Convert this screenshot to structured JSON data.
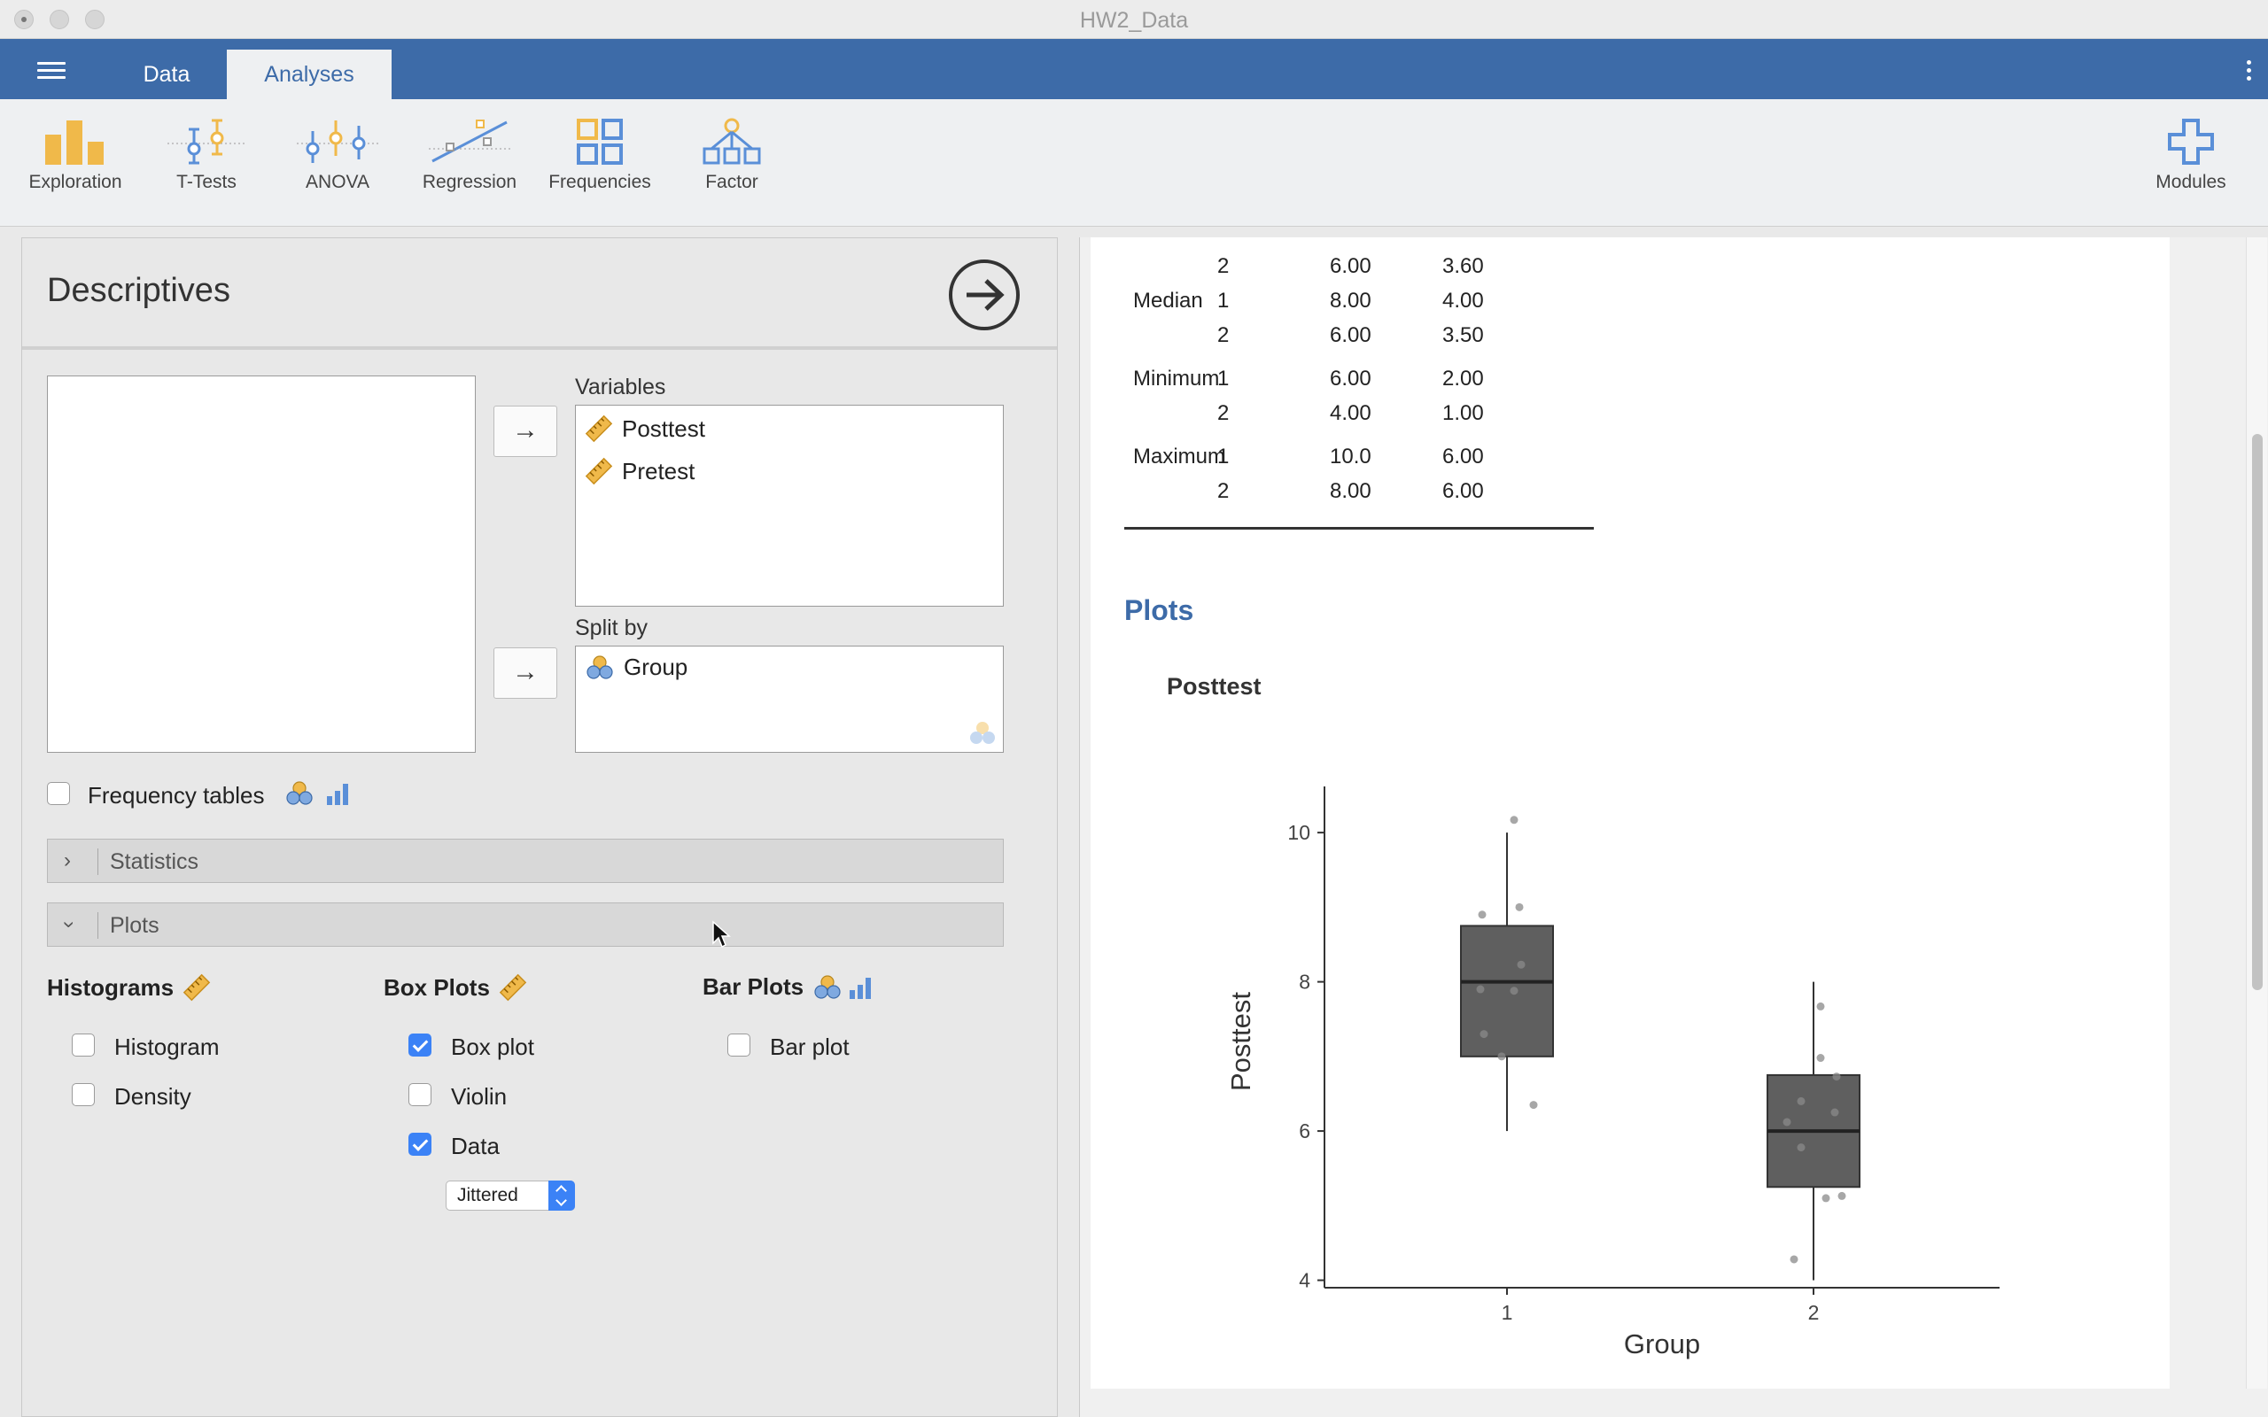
{
  "window": {
    "title": "HW2_Data"
  },
  "tabs": {
    "data": "Data",
    "analyses": "Analyses"
  },
  "ribbon": {
    "exploration": "Exploration",
    "ttests": "T-Tests",
    "anova": "ANOVA",
    "regression": "Regression",
    "frequencies": "Frequencies",
    "factor": "Factor",
    "modules": "Modules"
  },
  "descriptives": {
    "title": "Descriptives",
    "variables_label": "Variables",
    "variables": [
      "Posttest",
      "Pretest"
    ],
    "split_by_label": "Split by",
    "split_by": [
      "Group"
    ],
    "frequency_tables": {
      "label": "Frequency tables",
      "checked": false
    },
    "sections": {
      "statistics": "Statistics",
      "plots": "Plots"
    },
    "histograms": {
      "title": "Histograms",
      "histogram": {
        "label": "Histogram",
        "checked": false
      },
      "density": {
        "label": "Density",
        "checked": false
      }
    },
    "box_plots": {
      "title": "Box Plots",
      "box_plot": {
        "label": "Box plot",
        "checked": true
      },
      "violin": {
        "label": "Violin",
        "checked": false
      },
      "data": {
        "label": "Data",
        "checked": true
      },
      "data_mode": "Jittered"
    },
    "bar_plots": {
      "title": "Bar Plots",
      "bar_plot": {
        "label": "Bar plot",
        "checked": false
      }
    }
  },
  "results": {
    "table_rows": [
      {
        "stat": "",
        "group": "2",
        "posttest": "6.00",
        "pretest": "3.60"
      },
      {
        "stat": "Median",
        "group": "1",
        "posttest": "8.00",
        "pretest": "4.00"
      },
      {
        "stat": "",
        "group": "2",
        "posttest": "6.00",
        "pretest": "3.50"
      },
      {
        "stat": "Minimum",
        "group": "1",
        "posttest": "6.00",
        "pretest": "2.00"
      },
      {
        "stat": "",
        "group": "2",
        "posttest": "4.00",
        "pretest": "1.00"
      },
      {
        "stat": "Maximum",
        "group": "1",
        "posttest": "10.0",
        "pretest": "6.00"
      },
      {
        "stat": "",
        "group": "2",
        "posttest": "8.00",
        "pretest": "6.00"
      }
    ],
    "plots_heading": "Plots",
    "plot_title": "Posttest"
  },
  "colors": {
    "accent": "#3d6ba8",
    "box_fill": "#5f5f5f",
    "checkbox_on": "#3b82f6"
  },
  "chart_data": {
    "type": "box",
    "title": "Posttest",
    "xlabel": "Group",
    "ylabel": "Posttest",
    "categories": [
      "1",
      "2"
    ],
    "ylim": [
      3.9,
      10.5
    ],
    "yticks": [
      4,
      6,
      8,
      10
    ],
    "boxes": [
      {
        "category": "1",
        "whisker_low": 6.0,
        "q1": 7.0,
        "median": 8.0,
        "q3": 8.75,
        "whisker_high": 10.0
      },
      {
        "category": "2",
        "whisker_low": 4.0,
        "q1": 5.25,
        "median": 6.0,
        "q3": 6.75,
        "whisker_high": 8.0
      }
    ],
    "points": [
      {
        "category": "1",
        "values": [
          10.17,
          9.0,
          8.9,
          8.23,
          7.9,
          7.88,
          7.3,
          7.0,
          6.35
        ]
      },
      {
        "category": "2",
        "values": [
          7.67,
          6.98,
          6.73,
          6.4,
          6.25,
          6.12,
          5.78,
          5.13,
          5.1,
          4.28
        ]
      }
    ]
  }
}
